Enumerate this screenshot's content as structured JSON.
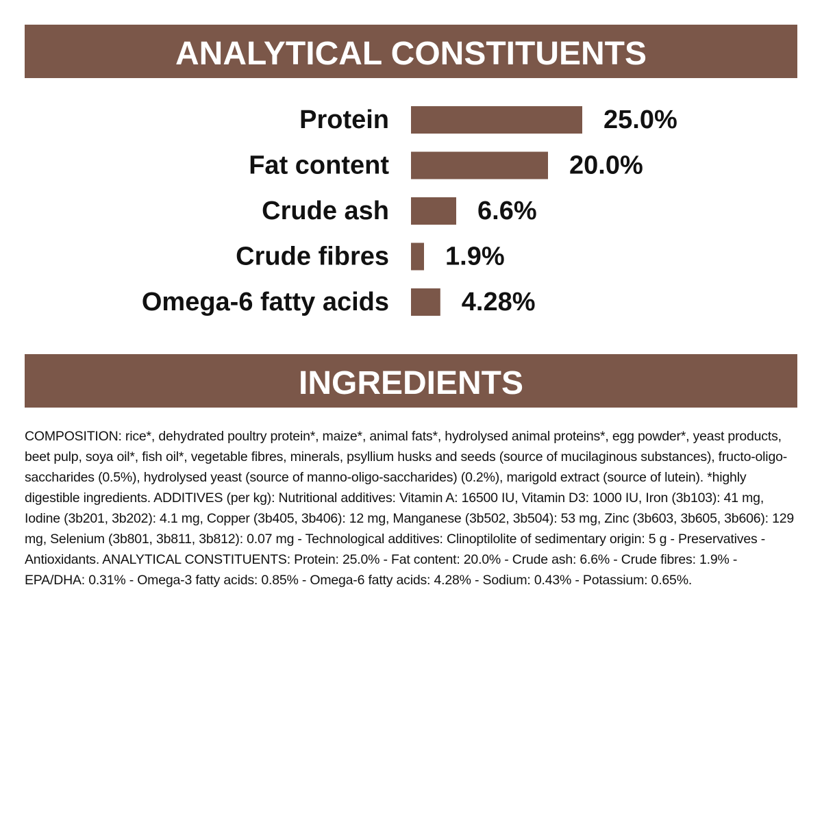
{
  "chart_data": {
    "type": "bar",
    "orientation": "horizontal",
    "title": "ANALYTICAL CONSTITUENTS",
    "categories": [
      "Protein",
      "Fat content",
      "Crude ash",
      "Crude fibres",
      "Omega-6 fatty acids"
    ],
    "values": [
      25.0,
      20.0,
      6.6,
      1.9,
      4.28
    ],
    "value_labels": [
      "25.0%",
      "20.0%",
      "6.6%",
      "1.9%",
      "4.28%"
    ],
    "color": "#7b5749"
  },
  "ingredients": {
    "title": "INGREDIENTS",
    "text": "COMPOSITION: rice*, dehydrated poultry protein*, maize*, animal fats*, hydrolysed animal proteins*, egg powder*, yeast products, beet pulp, soya oil*, fish oil*, vegetable fibres, minerals, psyllium husks and seeds (source of mucilaginous substances), fructo-oligo-saccharides (0.5%), hydrolysed yeast (source of manno-oligo-saccharides) (0.2%), marigold extract (source of lutein). *highly digestible ingredients. ADDITIVES (per kg): Nutritional additives: Vitamin A: 16500 IU, Vitamin D3: 1000 IU, Iron (3b103): 41 mg, Iodine (3b201, 3b202): 4.1 mg, Copper (3b405, 3b406): 12 mg, Manganese (3b502, 3b504): 53 mg, Zinc (3b603, 3b605, 3b606): 129 mg, Selenium (3b801, 3b811, 3b812): 0.07 mg - Technological additives: Clinoptilolite of sedimentary origin: 5 g - Preservatives - Antioxidants. ANALYTICAL CONSTITUENTS: Protein: 25.0% - Fat content: 20.0% - Crude ash: 6.6% - Crude fibres: 1.9% - EPA/DHA: 0.31% - Omega-3 fatty acids: 0.85% - Omega-6 fatty acids: 4.28% - Sodium: 0.43% - Potassium: 0.65%."
  }
}
